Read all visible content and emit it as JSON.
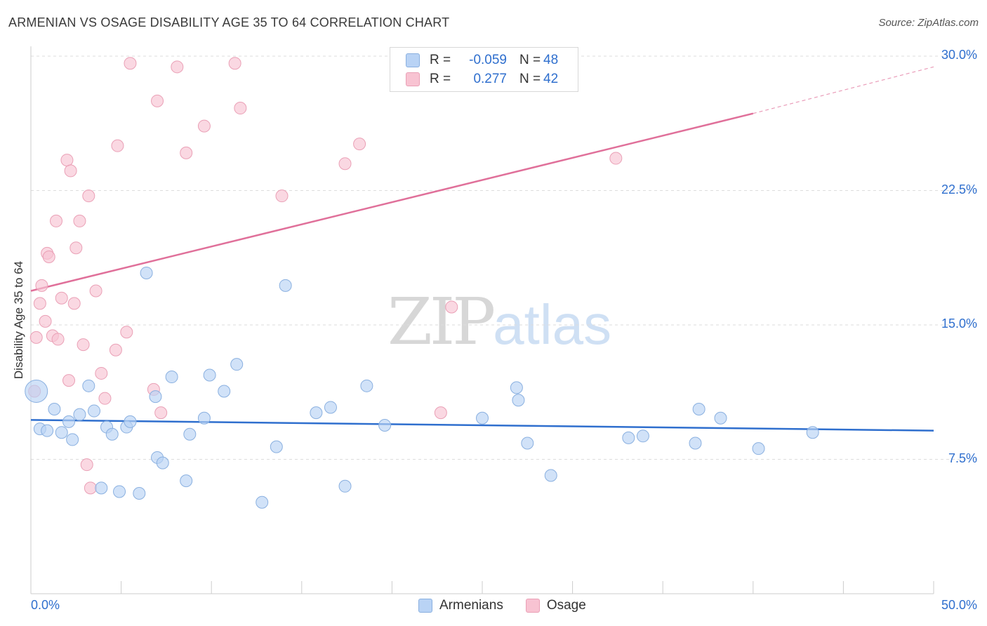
{
  "header": {
    "title": "ARMENIAN VS OSAGE DISABILITY AGE 35 TO 64 CORRELATION CHART",
    "source": "Source: ZipAtlas.com"
  },
  "watermark": {
    "zip": "ZIP",
    "atlas": "atlas"
  },
  "colors": {
    "armenians_fill": "#b9d3f5",
    "armenians_stroke": "#8ab0e0",
    "armenians_line": "#2f6fce",
    "osage_fill": "#f8c3d2",
    "osage_stroke": "#eaa0b6",
    "osage_line": "#e0709a",
    "tick_label": "#2f6fce",
    "grid": "#dddddd"
  },
  "legend": {
    "rows": [
      {
        "r_label": "R =",
        "r_value": "-0.059",
        "n_label": "N =",
        "n_value": "48"
      },
      {
        "r_label": "R =",
        "r_value": "0.277",
        "n_label": "N =",
        "n_value": "42"
      }
    ],
    "bottom": [
      "Armenians",
      "Osage"
    ]
  },
  "chart_data": {
    "type": "scatter",
    "title": "ARMENIAN VS OSAGE DISABILITY AGE 35 TO 64 CORRELATION CHART",
    "xlabel": "",
    "ylabel": "Disability Age 35 to 64",
    "xlim": [
      0,
      50
    ],
    "ylim": [
      0,
      30
    ],
    "x_tick_labels": [
      "0.0%",
      "50.0%"
    ],
    "y_ticks": [
      7.5,
      15.0,
      22.5,
      30.0
    ],
    "y_tick_labels": [
      "7.5%",
      "15.0%",
      "22.5%",
      "30.0%"
    ],
    "grid": "horizontal dashed",
    "legend_position": "top-center",
    "series": [
      {
        "name": "Armenians",
        "r": -0.059,
        "n": 48,
        "trend": {
          "x": [
            0,
            50
          ],
          "y": [
            9.7,
            9.1
          ]
        },
        "points": [
          [
            0.3,
            11.3
          ],
          [
            0.5,
            9.2
          ],
          [
            1.3,
            10.3
          ],
          [
            0.9,
            9.1
          ],
          [
            1.7,
            9.0
          ],
          [
            2.1,
            9.6
          ],
          [
            2.3,
            8.6
          ],
          [
            2.7,
            10.0
          ],
          [
            3.2,
            11.6
          ],
          [
            3.5,
            10.2
          ],
          [
            3.9,
            5.9
          ],
          [
            4.2,
            9.3
          ],
          [
            4.5,
            8.9
          ],
          [
            4.9,
            5.7
          ],
          [
            5.3,
            9.3
          ],
          [
            5.5,
            9.6
          ],
          [
            6.0,
            5.6
          ],
          [
            6.4,
            17.9
          ],
          [
            6.9,
            11.0
          ],
          [
            7.0,
            7.6
          ],
          [
            7.3,
            7.3
          ],
          [
            7.8,
            12.1
          ],
          [
            8.6,
            6.3
          ],
          [
            8.8,
            8.9
          ],
          [
            9.6,
            9.8
          ],
          [
            9.9,
            12.2
          ],
          [
            10.7,
            11.3
          ],
          [
            11.4,
            12.8
          ],
          [
            12.8,
            5.1
          ],
          [
            13.6,
            8.2
          ],
          [
            14.1,
            17.2
          ],
          [
            15.8,
            10.1
          ],
          [
            16.6,
            10.4
          ],
          [
            17.4,
            6.0
          ],
          [
            18.6,
            11.6
          ],
          [
            19.6,
            9.4
          ],
          [
            25.0,
            9.8
          ],
          [
            26.9,
            11.5
          ],
          [
            27.0,
            10.8
          ],
          [
            27.5,
            8.4
          ],
          [
            28.8,
            6.6
          ],
          [
            33.1,
            8.7
          ],
          [
            33.9,
            8.8
          ],
          [
            36.8,
            8.4
          ],
          [
            37.0,
            10.3
          ],
          [
            38.2,
            9.8
          ],
          [
            40.3,
            8.1
          ],
          [
            43.3,
            9.0
          ]
        ]
      },
      {
        "name": "Osage",
        "r": 0.277,
        "n": 42,
        "trend": {
          "x": [
            0,
            40
          ],
          "y": [
            16.9,
            26.8
          ],
          "dashed_extension_to": [
            50,
            29.4
          ]
        },
        "points": [
          [
            0.2,
            11.3
          ],
          [
            0.3,
            14.3
          ],
          [
            0.5,
            16.2
          ],
          [
            0.6,
            17.2
          ],
          [
            0.8,
            15.2
          ],
          [
            0.9,
            19.0
          ],
          [
            1.0,
            18.8
          ],
          [
            1.2,
            14.4
          ],
          [
            1.4,
            20.8
          ],
          [
            1.5,
            14.2
          ],
          [
            1.7,
            16.5
          ],
          [
            2.0,
            24.2
          ],
          [
            2.1,
            11.9
          ],
          [
            2.2,
            23.6
          ],
          [
            2.4,
            16.2
          ],
          [
            2.5,
            19.3
          ],
          [
            2.7,
            20.8
          ],
          [
            2.9,
            13.9
          ],
          [
            3.1,
            7.2
          ],
          [
            3.2,
            22.2
          ],
          [
            3.3,
            5.9
          ],
          [
            3.6,
            16.9
          ],
          [
            3.9,
            12.3
          ],
          [
            4.1,
            10.9
          ],
          [
            4.7,
            13.6
          ],
          [
            4.8,
            25.0
          ],
          [
            5.3,
            14.6
          ],
          [
            5.5,
            29.6
          ],
          [
            6.8,
            11.4
          ],
          [
            7.0,
            27.5
          ],
          [
            7.2,
            10.1
          ],
          [
            8.1,
            29.4
          ],
          [
            8.6,
            24.6
          ],
          [
            9.6,
            26.1
          ],
          [
            11.3,
            29.6
          ],
          [
            11.6,
            27.1
          ],
          [
            13.9,
            22.2
          ],
          [
            17.4,
            24.0
          ],
          [
            18.2,
            25.1
          ],
          [
            23.3,
            16.0
          ],
          [
            22.7,
            10.1
          ],
          [
            32.4,
            24.3
          ]
        ]
      }
    ]
  }
}
